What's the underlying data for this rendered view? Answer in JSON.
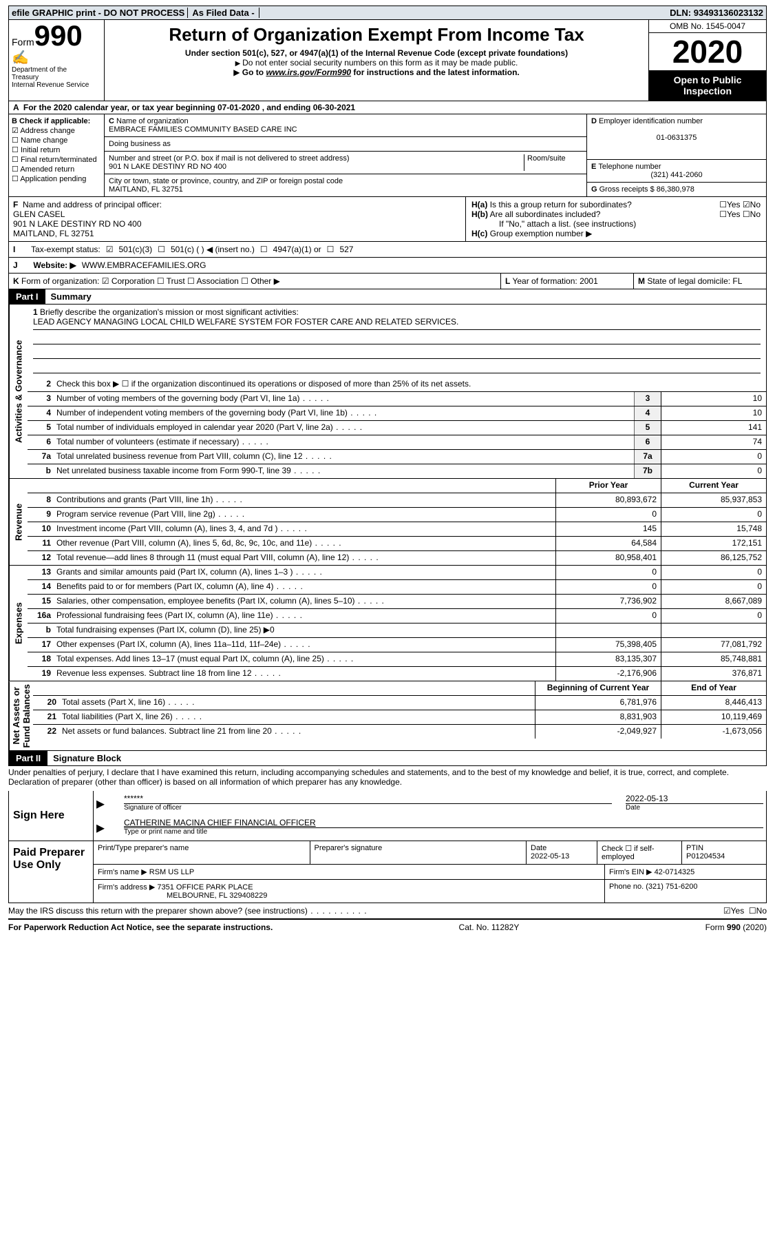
{
  "topbar": {
    "left": "efile GRAPHIC print - DO NOT PROCESS",
    "mid": "As Filed Data -",
    "dln_label": "DLN:",
    "dln": "93493136023132"
  },
  "header": {
    "form_label": "Form",
    "form_num": "990",
    "dept1": "Department of the",
    "dept2": "Treasury",
    "dept3": "Internal Revenue Service",
    "title": "Return of Organization Exempt From Income Tax",
    "subtitle": "Under section 501(c), 527, or 4947(a)(1) of the Internal Revenue Code (except private foundations)",
    "note1": "Do not enter social security numbers on this form as it may be made public.",
    "note2_pre": "Go to ",
    "note2_link": "www.irs.gov/Form990",
    "note2_post": " for instructions and the latest information.",
    "omb": "OMB No. 1545-0047",
    "year": "2020",
    "inspect1": "Open to Public",
    "inspect2": "Inspection"
  },
  "A": {
    "text": "For the 2020 calendar year, or tax year beginning 07-01-2020   , and ending 06-30-2021"
  },
  "B": {
    "label": "Check if applicable:",
    "items": [
      "Address change",
      "Name change",
      "Initial return",
      "Final return/terminated",
      "Amended return",
      "Application pending"
    ],
    "checked": [
      true,
      false,
      false,
      false,
      false,
      false
    ]
  },
  "C": {
    "name_label": "Name of organization",
    "name": "EMBRACE FAMILIES COMMUNITY BASED CARE INC",
    "dba_label": "Doing business as",
    "addr_label": "Number and street (or P.O. box if mail is not delivered to street address)",
    "room_label": "Room/suite",
    "addr": "901 N LAKE DESTINY RD NO 400",
    "city_label": "City or town, state or province, country, and ZIP or foreign postal code",
    "city": "MAITLAND, FL  32751"
  },
  "D": {
    "label": "Employer identification number",
    "value": "01-0631375"
  },
  "E": {
    "label": "Telephone number",
    "value": "(321) 441-2060"
  },
  "G": {
    "label": "Gross receipts $",
    "value": "86,380,978"
  },
  "F": {
    "label": "Name and address of principal officer:",
    "name": "GLEN CASEL",
    "addr1": "901 N LAKE DESTINY RD NO 400",
    "addr2": "MAITLAND, FL  32751"
  },
  "H": {
    "a": "Is this a group return for subordinates?",
    "b": "Are all subordinates included?",
    "note": "If \"No,\" attach a list. (see instructions)",
    "c": "Group exemption number ▶",
    "yes": "Yes",
    "no": "No"
  },
  "I": {
    "label": "Tax-exempt status:",
    "opts": [
      "501(c)(3)",
      "501(c) (   ) ◀ (insert no.)",
      "4947(a)(1) or",
      "527"
    ]
  },
  "J": {
    "label": "Website: ▶",
    "value": "WWW.EMBRACEFAMILIES.ORG"
  },
  "K": {
    "label": "Form of organization:",
    "opts": [
      "Corporation",
      "Trust",
      "Association",
      "Other ▶"
    ]
  },
  "L": {
    "label": "Year of formation:",
    "value": "2001"
  },
  "M": {
    "label": "State of legal domicile:",
    "value": "FL"
  },
  "parts": {
    "p1": "Part I",
    "p1t": "Summary",
    "p2": "Part II",
    "p2t": "Signature Block"
  },
  "vlabels": {
    "gov": "Activities & Governance",
    "rev": "Revenue",
    "exp": "Expenses",
    "net": "Net Assets or\nFund Balances"
  },
  "summary": {
    "line1": "Briefly describe the organization's mission or most significant activities:",
    "mission": "LEAD AGENCY MANAGING LOCAL CHILD WELFARE SYSTEM FOR FOSTER CARE AND RELATED SERVICES.",
    "line2": "Check this box ▶ ☐ if the organization discontinued its operations or disposed of more than 25% of its net assets.",
    "rows_single": [
      {
        "n": "3",
        "d": "Number of voting members of the governing body (Part VI, line 1a)",
        "ln": "3",
        "v": "10"
      },
      {
        "n": "4",
        "d": "Number of independent voting members of the governing body (Part VI, line 1b)",
        "ln": "4",
        "v": "10"
      },
      {
        "n": "5",
        "d": "Total number of individuals employed in calendar year 2020 (Part V, line 2a)",
        "ln": "5",
        "v": "141"
      },
      {
        "n": "6",
        "d": "Total number of volunteers (estimate if necessary)",
        "ln": "6",
        "v": "74"
      },
      {
        "n": "7a",
        "d": "Total unrelated business revenue from Part VIII, column (C), line 12",
        "ln": "7a",
        "v": "0"
      },
      {
        "n": "b",
        "d": "Net unrelated business taxable income from Form 990-T, line 39",
        "ln": "7b",
        "v": "0"
      }
    ],
    "col_hdr_prior": "Prior Year",
    "col_hdr_curr": "Current Year",
    "rev_rows": [
      {
        "n": "8",
        "d": "Contributions and grants (Part VIII, line 1h)",
        "p": "80,893,672",
        "c": "85,937,853"
      },
      {
        "n": "9",
        "d": "Program service revenue (Part VIII, line 2g)",
        "p": "0",
        "c": "0"
      },
      {
        "n": "10",
        "d": "Investment income (Part VIII, column (A), lines 3, 4, and 7d )",
        "p": "145",
        "c": "15,748"
      },
      {
        "n": "11",
        "d": "Other revenue (Part VIII, column (A), lines 5, 6d, 8c, 9c, 10c, and 11e)",
        "p": "64,584",
        "c": "172,151"
      },
      {
        "n": "12",
        "d": "Total revenue—add lines 8 through 11 (must equal Part VIII, column (A), line 12)",
        "p": "80,958,401",
        "c": "86,125,752"
      }
    ],
    "exp_rows": [
      {
        "n": "13",
        "d": "Grants and similar amounts paid (Part IX, column (A), lines 1–3 )",
        "p": "0",
        "c": "0"
      },
      {
        "n": "14",
        "d": "Benefits paid to or for members (Part IX, column (A), line 4)",
        "p": "0",
        "c": "0"
      },
      {
        "n": "15",
        "d": "Salaries, other compensation, employee benefits (Part IX, column (A), lines 5–10)",
        "p": "7,736,902",
        "c": "8,667,089"
      },
      {
        "n": "16a",
        "d": "Professional fundraising fees (Part IX, column (A), line 11e)",
        "p": "0",
        "c": "0"
      },
      {
        "n": "b",
        "d": "Total fundraising expenses (Part IX, column (D), line 25) ▶0",
        "p": "",
        "c": ""
      },
      {
        "n": "17",
        "d": "Other expenses (Part IX, column (A), lines 11a–11d, 11f–24e)",
        "p": "75,398,405",
        "c": "77,081,792"
      },
      {
        "n": "18",
        "d": "Total expenses. Add lines 13–17 (must equal Part IX, column (A), line 25)",
        "p": "83,135,307",
        "c": "85,748,881"
      },
      {
        "n": "19",
        "d": "Revenue less expenses. Subtract line 18 from line 12",
        "p": "-2,176,906",
        "c": "376,871"
      }
    ],
    "net_hdr_begin": "Beginning of Current Year",
    "net_hdr_end": "End of Year",
    "net_rows": [
      {
        "n": "20",
        "d": "Total assets (Part X, line 16)",
        "p": "6,781,976",
        "c": "8,446,413"
      },
      {
        "n": "21",
        "d": "Total liabilities (Part X, line 26)",
        "p": "8,831,903",
        "c": "10,119,469"
      },
      {
        "n": "22",
        "d": "Net assets or fund balances. Subtract line 21 from line 20",
        "p": "-2,049,927",
        "c": "-1,673,056"
      }
    ]
  },
  "perjury": "Under penalties of perjury, I declare that I have examined this return, including accompanying schedules and statements, and to the best of my knowledge and belief, it is true, correct, and complete. Declaration of preparer (other than officer) is based on all information of which preparer has any knowledge.",
  "sign": {
    "label": "Sign Here",
    "stars": "******",
    "sig_of": "Signature of officer",
    "date_label": "Date",
    "date": "2022-05-13",
    "name": "CATHERINE MACINA  CHIEF FINANCIAL OFFICER",
    "type_label": "Type or print name and title"
  },
  "paid": {
    "label": "Paid Preparer Use Only",
    "h1": "Print/Type preparer's name",
    "h2": "Preparer's signature",
    "h3": "Date",
    "h3v": "2022-05-13",
    "h4": "Check ☐ if self-employed",
    "h5": "PTIN",
    "h5v": "P01204534",
    "firm_label": "Firm's name   ▶",
    "firm": "RSM US LLP",
    "ein_label": "Firm's EIN ▶",
    "ein": "42-0714325",
    "addr_label": "Firm's address ▶",
    "addr1": "7351 OFFICE PARK PLACE",
    "addr2": "MELBOURNE, FL 329408229",
    "phone_label": "Phone no.",
    "phone": "(321) 751-6200"
  },
  "discuss": {
    "q": "May the IRS discuss this return with the preparer shown above? (see instructions)",
    "yes": "Yes",
    "no": "No"
  },
  "footer": {
    "left": "For Paperwork Reduction Act Notice, see the separate instructions.",
    "mid": "Cat. No. 11282Y",
    "right": "Form 990 (2020)"
  }
}
